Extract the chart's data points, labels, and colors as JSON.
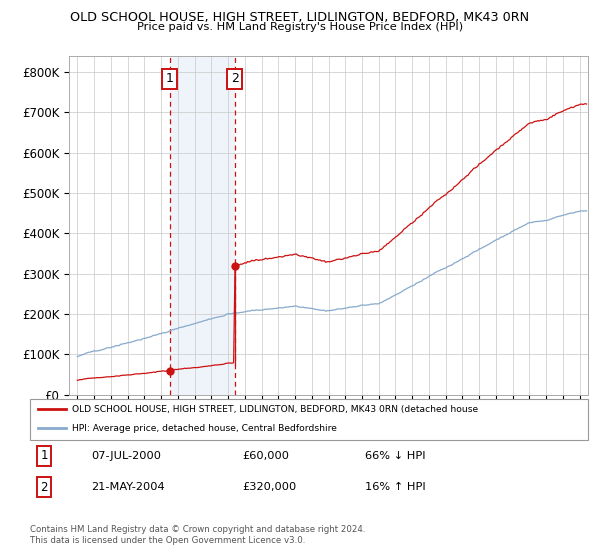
{
  "title": "OLD SCHOOL HOUSE, HIGH STREET, LIDLINGTON, BEDFORD, MK43 0RN",
  "subtitle": "Price paid vs. HM Land Registry's House Price Index (HPI)",
  "sale1_date_num": 2000.52,
  "sale1_price": 60000,
  "sale1_label": "1",
  "sale2_date_num": 2004.39,
  "sale2_price": 320000,
  "sale2_label": "2",
  "hpi_line_color": "#88aacc",
  "price_color": "#cc1111",
  "shading_color": "#ccddf0",
  "ylim_min": 0,
  "ylim_max": 840000,
  "ytick_step": 100000,
  "xmin": 1994.5,
  "xmax": 2025.5,
  "legend1": "OLD SCHOOL HOUSE, HIGH STREET, LIDLINGTON, BEDFORD, MK43 0RN (detached house",
  "legend2": "HPI: Average price, detached house, Central Bedfordshire",
  "table_row1_num": "1",
  "table_row1_date": "07-JUL-2000",
  "table_row1_price": "£60,000",
  "table_row1_hpi": "66% ↓ HPI",
  "table_row2_num": "2",
  "table_row2_date": "21-MAY-2004",
  "table_row2_price": "£320,000",
  "table_row2_hpi": "16% ↑ HPI",
  "footer": "Contains HM Land Registry data © Crown copyright and database right 2024.\nThis data is licensed under the Open Government Licence v3.0."
}
